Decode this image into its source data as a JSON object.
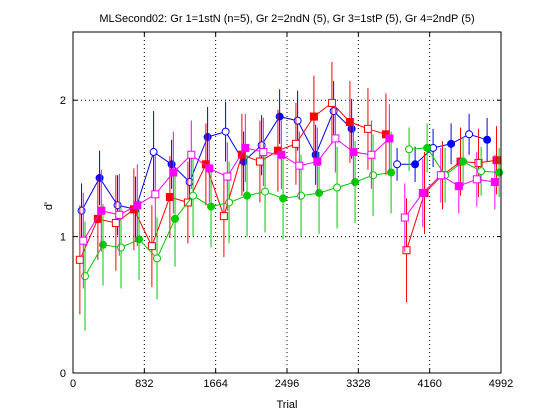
{
  "chart_data": {
    "type": "line",
    "title": "MLSecond02: Gr 1=1stN (n=5), Gr 2=2ndN (5), Gr 3=1stP (5), Gr 4=2ndP (5)",
    "xlabel": "Trial",
    "ylabel": "d'",
    "xlim": [
      0,
      4992
    ],
    "ylim": [
      0,
      2.5
    ],
    "xticks": [
      0,
      832,
      1664,
      2496,
      3328,
      4160,
      4992
    ],
    "yticks": [
      0,
      1,
      2
    ],
    "grid": true,
    "legend": "none",
    "series": [
      {
        "group": 1,
        "color": "#0000ff",
        "marker": "circle",
        "segments": [
          {
            "points": [
              [
                100,
                1.19,
                0.2
              ],
              [
                310,
                1.43,
                0.2
              ],
              [
                520,
                1.23,
                0.22
              ],
              [
                730,
                1.2,
                0.24
              ],
              [
                940,
                1.62,
                0.3
              ],
              [
                1150,
                1.53,
                0.18
              ],
              [
                1360,
                1.4,
                0.18
              ],
              [
                1570,
                1.73,
                0.22
              ],
              [
                1780,
                1.77,
                0.22
              ],
              [
                1990,
                1.55,
                0.22
              ],
              [
                2200,
                1.67,
                0.22
              ],
              [
                2410,
                1.88,
                0.2
              ],
              [
                2620,
                1.85,
                0.22
              ],
              [
                2830,
                1.6,
                0.22
              ],
              [
                3040,
                1.92,
                0.22
              ],
              [
                3250,
                1.79,
                0.22
              ]
            ]
          },
          {
            "points": [
              [
                3780,
                1.53,
                0.12
              ],
              [
                3990,
                1.53,
                0.13
              ],
              [
                4200,
                1.65,
                0.14
              ],
              [
                4410,
                1.68,
                0.15
              ],
              [
                4620,
                1.75,
                0.15
              ],
              [
                4830,
                1.71,
                0.16
              ]
            ]
          }
        ]
      },
      {
        "group": 2,
        "color": "#ff0000",
        "marker": "square",
        "segments": [
          {
            "points": [
              [
                80,
                0.83,
                0.4
              ],
              [
                290,
                1.13,
                0.3
              ],
              [
                500,
                1.1,
                0.35
              ],
              [
                710,
                1.2,
                0.3
              ],
              [
                920,
                0.93,
                0.3
              ],
              [
                1130,
                1.29,
                0.3
              ],
              [
                1340,
                1.25,
                0.3
              ],
              [
                1550,
                1.53,
                0.3
              ],
              [
                1760,
                1.15,
                0.3
              ],
              [
                1970,
                1.6,
                0.3
              ],
              [
                2180,
                1.55,
                0.3
              ],
              [
                2390,
                1.63,
                0.3
              ],
              [
                2600,
                1.68,
                0.3
              ],
              [
                2810,
                1.88,
                0.3
              ],
              [
                3020,
                1.98,
                0.3
              ],
              [
                3230,
                1.84,
                0.3
              ],
              [
                3440,
                1.79,
                0.3
              ],
              [
                3650,
                1.75,
                0.3
              ]
            ]
          },
          {
            "points": [
              [
                3890,
                0.9,
                0.38
              ],
              [
                4100,
                1.32,
                0.3
              ],
              [
                4310,
                1.45,
                0.25
              ],
              [
                4520,
                1.55,
                0.25
              ],
              [
                4730,
                1.54,
                0.25
              ],
              [
                4940,
                1.56,
                0.25
              ]
            ]
          }
        ]
      },
      {
        "group": 3,
        "color": "#00cc00",
        "marker": "circle",
        "segments": [
          {
            "points": [
              [
                140,
                0.71,
                0.4
              ],
              [
                350,
                0.94,
                0.3
              ],
              [
                560,
                0.92,
                0.3
              ],
              [
                770,
                0.98,
                0.3
              ],
              [
                980,
                0.84,
                0.3
              ],
              [
                1190,
                1.13,
                0.35
              ],
              [
                1400,
                1.3,
                0.3
              ],
              [
                1610,
                1.22,
                0.3
              ],
              [
                1820,
                1.25,
                0.3
              ],
              [
                2030,
                1.3,
                0.3
              ],
              [
                2240,
                1.33,
                0.3
              ],
              [
                2450,
                1.28,
                0.3
              ],
              [
                2660,
                1.3,
                0.3
              ],
              [
                2870,
                1.32,
                0.3
              ],
              [
                3080,
                1.36,
                0.3
              ],
              [
                3290,
                1.4,
                0.3
              ],
              [
                3500,
                1.45,
                0.3
              ],
              [
                3710,
                1.47,
                0.3
              ]
            ]
          },
          {
            "points": [
              [
                3920,
                1.64,
                0.16
              ],
              [
                4130,
                1.65,
                0.18
              ],
              [
                4340,
                1.45,
                0.2
              ],
              [
                4550,
                1.55,
                0.18
              ],
              [
                4760,
                1.48,
                0.18
              ],
              [
                4970,
                1.47,
                0.18
              ]
            ]
          }
        ]
      },
      {
        "group": 4,
        "color": "#ff00ff",
        "marker": "square",
        "segments": [
          {
            "points": [
              [
                120,
                0.97,
                0.35
              ],
              [
                330,
                1.19,
                0.3
              ],
              [
                540,
                1.16,
                0.3
              ],
              [
                750,
                1.23,
                0.3
              ],
              [
                960,
                1.31,
                0.3
              ],
              [
                1170,
                1.47,
                0.3
              ],
              [
                1380,
                1.6,
                0.25
              ],
              [
                1590,
                1.5,
                0.25
              ],
              [
                1800,
                1.44,
                0.25
              ],
              [
                2010,
                1.65,
                0.25
              ],
              [
                2220,
                1.62,
                0.25
              ],
              [
                2430,
                1.6,
                0.25
              ],
              [
                2640,
                1.52,
                0.25
              ],
              [
                2850,
                1.55,
                0.25
              ],
              [
                3060,
                1.72,
                0.25
              ],
              [
                3270,
                1.62,
                0.25
              ],
              [
                3480,
                1.6,
                0.25
              ],
              [
                3690,
                1.72,
                0.25
              ]
            ]
          },
          {
            "points": [
              [
                3870,
                1.14,
                0.25
              ],
              [
                4080,
                1.32,
                0.25
              ],
              [
                4290,
                1.45,
                0.2
              ],
              [
                4500,
                1.37,
                0.2
              ],
              [
                4710,
                1.42,
                0.2
              ],
              [
                4920,
                1.4,
                0.2
              ]
            ]
          }
        ]
      }
    ]
  }
}
